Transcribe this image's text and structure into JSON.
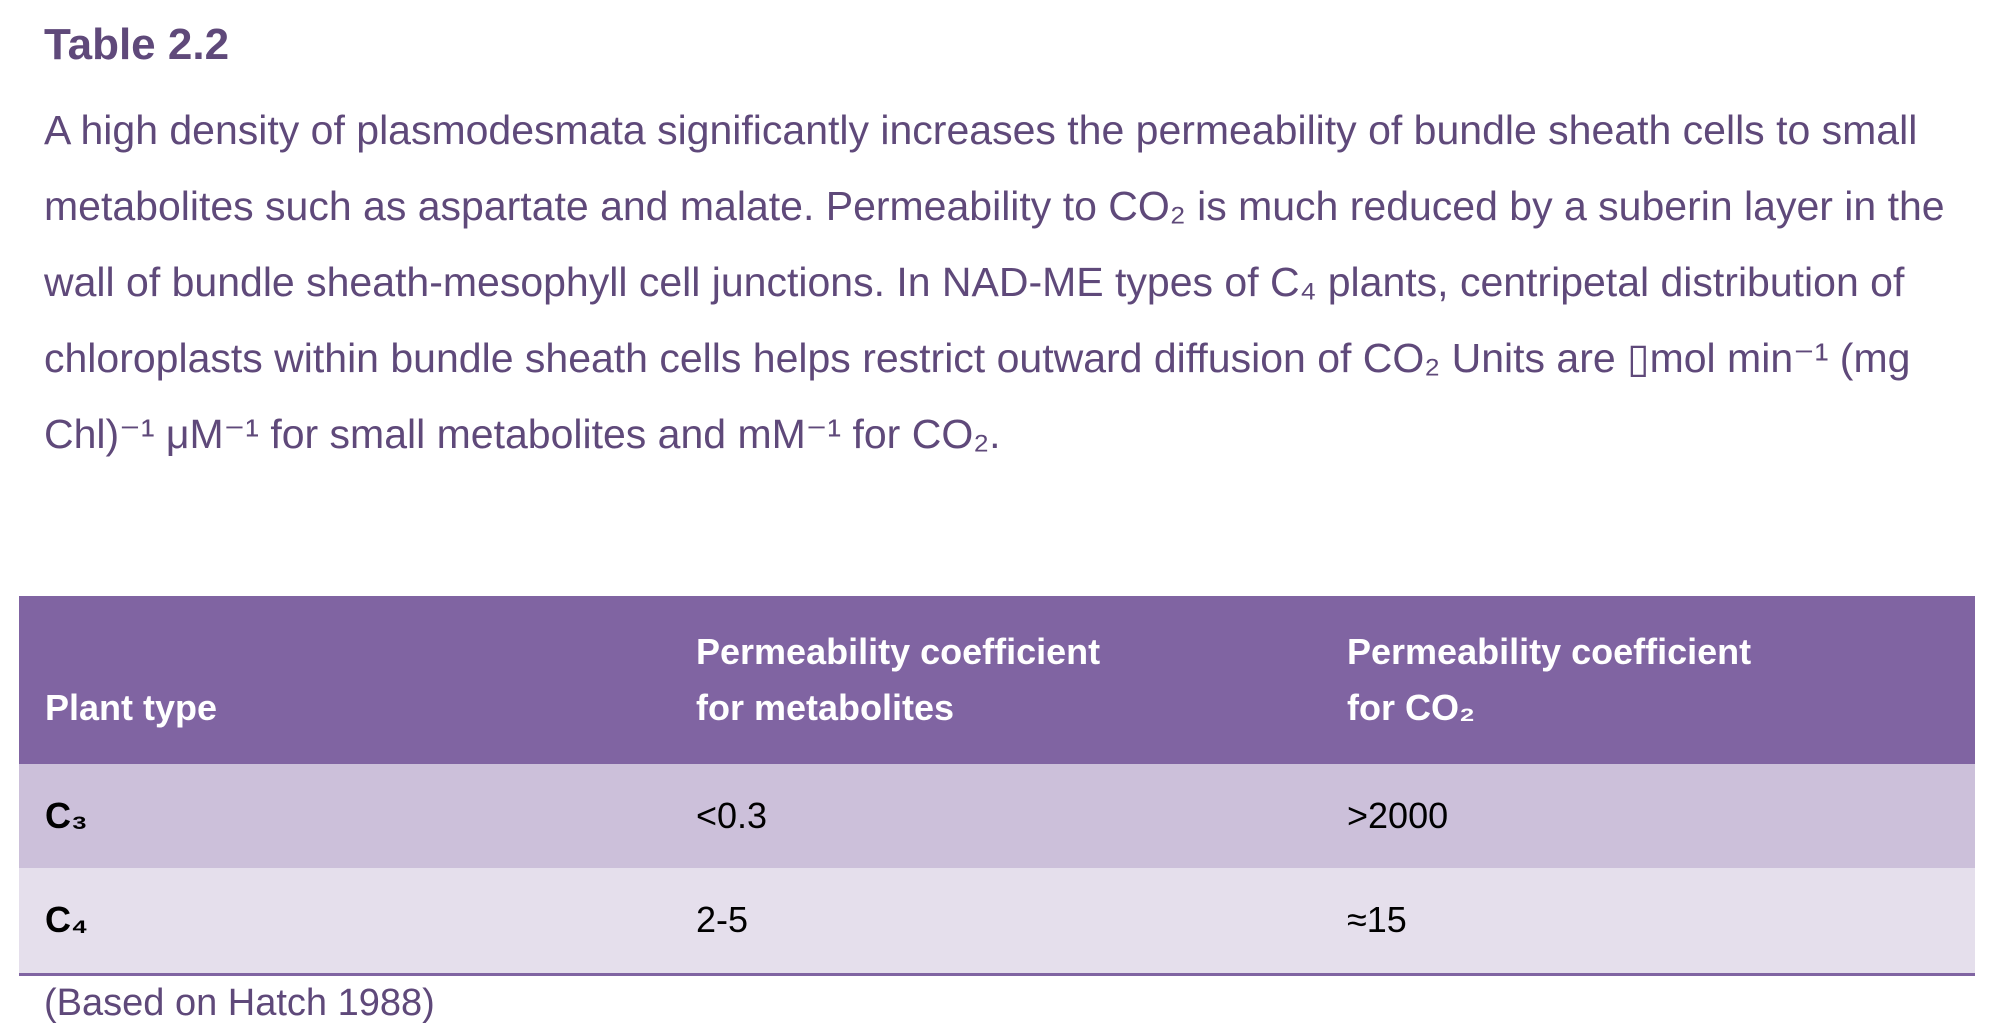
{
  "title": "Table 2.2",
  "caption": "A high density of plasmodesmata significantly increases the permeability of bundle sheath cells to small metabolites such as aspartate and malate. Permeability to CO₂ is much reduced by a suberin layer in the wall of bundle sheath-mesophyll cell junctions. In NAD-ME types of C₄ plants, centripetal distribution of chloroplasts within bundle sheath cells helps restrict outward diffusion of CO₂ Units are ▯mol min⁻¹ (mg Chl)⁻¹ μM⁻¹  for small metabolites and mM⁻¹  for CO₂.",
  "table": {
    "header": [
      [
        "Plant type"
      ],
      [
        "Permeability coefficient",
        "for metabolites"
      ],
      [
        "Permeability coefficient",
        "for CO₂"
      ]
    ],
    "rows": [
      [
        "C₃",
        "<0.3",
        ">2000"
      ],
      [
        "C₄",
        "2-5",
        "≈15"
      ]
    ]
  },
  "source": "(Based on Hatch 1988)"
}
